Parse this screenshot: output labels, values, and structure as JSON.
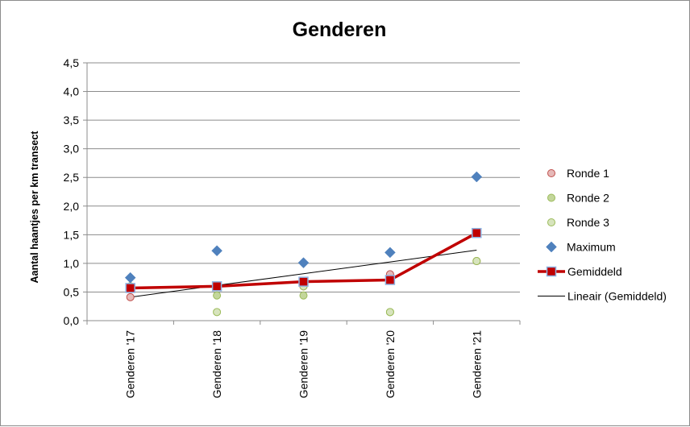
{
  "chart_data": {
    "type": "line",
    "title": "Genderen",
    "xlabel": "",
    "ylabel": "Aantal haantjes per km transect",
    "categories": [
      "Genderen '17",
      "Genderen '18",
      "Genderen '19",
      "Genderen '20",
      "Genderen '21"
    ],
    "ylim": [
      0,
      4.5
    ],
    "yticks": [
      "0,0",
      "0,5",
      "1,0",
      "1,5",
      "2,0",
      "2,5",
      "3,0",
      "3,5",
      "4,0",
      "4,5"
    ],
    "grid": true,
    "legend_position": "right",
    "series": [
      {
        "name": "Ronde 1",
        "kind": "scatter",
        "marker": "circle",
        "color": "#e6b9b8",
        "stroke": "#c0504d",
        "values": [
          0.41,
          0.6,
          0.6,
          0.81,
          1.04
        ]
      },
      {
        "name": "Ronde 2",
        "kind": "scatter",
        "marker": "circle",
        "color": "#c3d69b",
        "stroke": "#9bbb59",
        "values": [
          0.6,
          0.44,
          0.44,
          0.15,
          1.04
        ]
      },
      {
        "name": "Ronde 3",
        "kind": "scatter",
        "marker": "circle",
        "color": "#d7e4bd",
        "stroke": "#9bbb59",
        "values": [
          0.6,
          0.15,
          0.6,
          0.15,
          1.04
        ]
      },
      {
        "name": "Maximum",
        "kind": "scatter",
        "marker": "diamond",
        "color": "#4f81bd",
        "stroke": "#4f81bd",
        "values": [
          0.75,
          1.22,
          1.01,
          1.19,
          2.51
        ]
      },
      {
        "name": "Gemiddeld",
        "kind": "line",
        "marker": "square",
        "color": "#c00000",
        "stroke": "#c00000",
        "values": [
          0.57,
          0.6,
          0.68,
          0.71,
          1.53
        ]
      },
      {
        "name": "Lineair (Gemiddeld)",
        "kind": "trendline",
        "color": "#000000",
        "stroke": "#000000",
        "values": [
          0.41,
          0.62,
          0.82,
          1.02,
          1.23
        ]
      }
    ]
  }
}
